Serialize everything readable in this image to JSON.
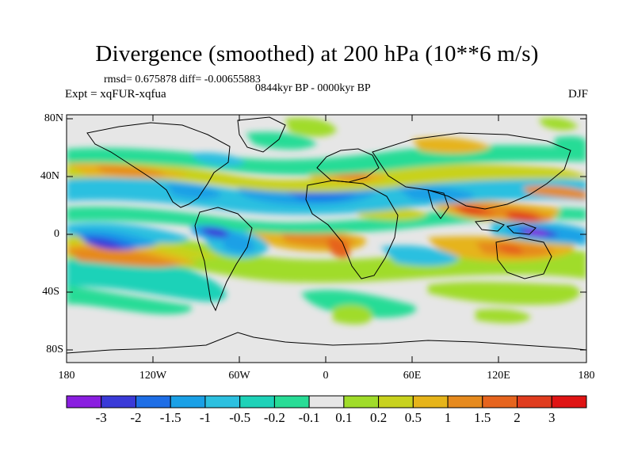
{
  "title": "Divergence (smoothed) at 200 hPa (10**6 m/s)",
  "stats": "rmsd= 0.675878 diff= -0.00655883",
  "period": "0844kyr BP - 0000kyr BP",
  "experiment": "Expt = xqFUR-xqfua",
  "season": "DJF",
  "axes": {
    "lat_ticks": [
      "80N",
      "40N",
      "0",
      "40S",
      "80S"
    ],
    "lon_ticks": [
      "180",
      "120W",
      "60W",
      "0",
      "60E",
      "120E",
      "180"
    ]
  },
  "colorbar": {
    "labels": [
      "-3",
      "-2",
      "-1.5",
      "-1",
      "-0.5",
      "-0.2",
      "-0.1",
      "0.1",
      "0.2",
      "0.5",
      "1",
      "1.5",
      "2",
      "3"
    ],
    "colors": [
      "#8a1ee0",
      "#3a3ad8",
      "#1e6ee6",
      "#1aa0e6",
      "#2cc0e0",
      "#1ed2b8",
      "#28dc96",
      "#e6e6e6",
      "#a0dc2a",
      "#c8d21e",
      "#e6b41a",
      "#e68a1e",
      "#e6641e",
      "#e03c1e",
      "#e01414"
    ]
  }
}
